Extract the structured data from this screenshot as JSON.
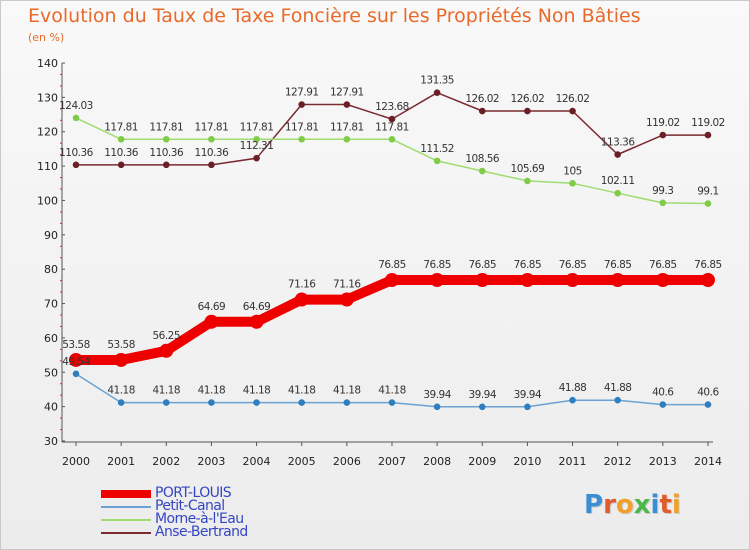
{
  "header": {
    "title": "Evolution du Taux de Taxe Foncière sur les Propriétés Non Bâties",
    "unit": "(en %)"
  },
  "logo": {
    "text": "Proxiti"
  },
  "colors": {
    "PORT-LOUIS": "#ee0000",
    "Petit-Canal": "#4a90c8",
    "Morne-à-l'Eau": "#8fd35a",
    "Anse-Bertrand": "#7a2a30"
  },
  "chart_data": {
    "type": "line",
    "title": "Evolution du Taux de Taxe Foncière sur les Propriétés Non Bâties",
    "ylabel": "(en %)",
    "xlabel": "",
    "ylim": [
      30,
      140
    ],
    "yticks": [
      30,
      40,
      50,
      60,
      70,
      80,
      90,
      100,
      110,
      120,
      130,
      140
    ],
    "grid": false,
    "legend": "bottom-left",
    "x": [
      "2000",
      "2001",
      "2002",
      "2003",
      "2004",
      "2005",
      "2006",
      "2007",
      "2008",
      "2009",
      "2010",
      "2011",
      "2012",
      "2013",
      "2014"
    ],
    "series": [
      {
        "name": "PORT-LOUIS",
        "values": [
          53.58,
          53.58,
          56.25,
          64.69,
          64.69,
          71.16,
          71.16,
          76.85,
          76.85,
          76.85,
          76.85,
          76.85,
          76.85,
          76.85,
          76.85
        ],
        "labels": [
          "53.58",
          "53.58",
          "56.25",
          "64.69",
          "64.69",
          "71.16",
          "71.16",
          "76.85",
          "76.85",
          "76.85",
          "76.85",
          "76.85",
          "76.85",
          "76.85",
          "76.85"
        ]
      },
      {
        "name": "Petit-Canal",
        "values": [
          49.54,
          41.18,
          41.18,
          41.18,
          41.18,
          41.18,
          41.18,
          41.18,
          39.94,
          39.94,
          39.94,
          41.88,
          41.88,
          40.6,
          40.6
        ],
        "labels": [
          "49.54",
          "41.18",
          "41.18",
          "41.18",
          "41.18",
          "41.18",
          "41.18",
          "41.18",
          "39.94",
          "39.94",
          "39.94",
          "41.88",
          "41.88",
          "40.6",
          "40.6"
        ]
      },
      {
        "name": "Morne-à-l'Eau",
        "values": [
          124.03,
          117.81,
          117.81,
          117.81,
          117.81,
          117.81,
          117.81,
          117.81,
          111.52,
          108.56,
          105.69,
          105,
          102.11,
          99.3,
          99.1
        ],
        "labels": [
          "124.03",
          "117.81",
          "117.81",
          "117.81",
          "117.81",
          "117.81",
          "117.81",
          "117.81",
          "111.52",
          "108.56",
          "105.69",
          "105",
          "102.11",
          "99.3",
          "99.1"
        ]
      },
      {
        "name": "Anse-Bertrand",
        "values": [
          110.36,
          110.36,
          110.36,
          110.36,
          112.31,
          127.91,
          127.91,
          123.68,
          131.35,
          126.02,
          126.02,
          126.02,
          113.36,
          119.02,
          119.02
        ],
        "labels": [
          "110.36",
          "110.36",
          "110.36",
          "110.36",
          "112.31",
          "127.91",
          "127.91",
          "123.68",
          "131.35",
          "126.02",
          "126.02",
          "126.02",
          "113.36",
          "119.02",
          "119.02"
        ]
      }
    ]
  }
}
